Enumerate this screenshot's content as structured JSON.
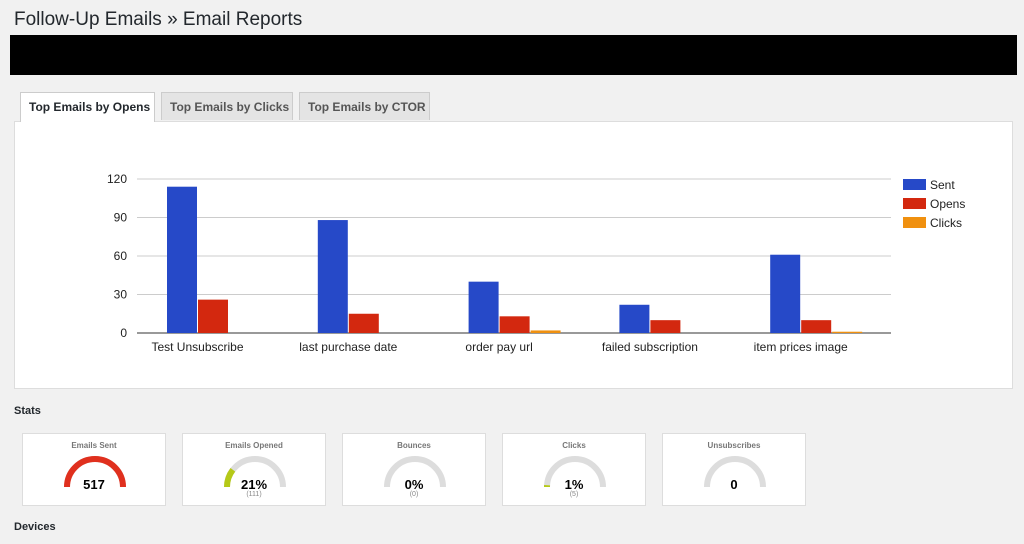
{
  "page": {
    "title": "Follow-Up Emails » Email Reports"
  },
  "tabs": [
    {
      "label": "Top Emails by Opens",
      "active": true
    },
    {
      "label": "Top Emails by Clicks",
      "active": false
    },
    {
      "label": "Top Emails by CTOR",
      "active": false
    }
  ],
  "chart_data": {
    "type": "bar",
    "categories": [
      "Test Unsubscribe",
      "last purchase date",
      "order pay url",
      "failed subscription",
      "item prices image"
    ],
    "series": [
      {
        "name": "Sent",
        "color": "#2649c8",
        "values": [
          114,
          88,
          40,
          22,
          61
        ]
      },
      {
        "name": "Opens",
        "color": "#d3280f",
        "values": [
          26,
          15,
          13,
          10,
          10
        ]
      },
      {
        "name": "Clicks",
        "color": "#f0900f",
        "values": [
          0,
          0,
          2,
          0,
          1
        ]
      }
    ],
    "yticks": [
      0,
      30,
      60,
      90,
      120
    ],
    "ylim": [
      0,
      120
    ],
    "grid": true,
    "legend": "right"
  },
  "stats": {
    "title": "Stats",
    "cards": [
      {
        "label": "Emails Sent",
        "value": "517",
        "sub": "",
        "fraction": 1.0,
        "color": "#e0301e"
      },
      {
        "label": "Emails Opened",
        "value": "21%",
        "sub": "(111)",
        "fraction": 0.21,
        "color": "#b5c918"
      },
      {
        "label": "Bounces",
        "value": "0%",
        "sub": "(0)",
        "fraction": 0,
        "color": "#dddddd"
      },
      {
        "label": "Clicks",
        "value": "1%",
        "sub": "(5)",
        "fraction": 0.01,
        "color": "#b5c918"
      },
      {
        "label": "Unsubscribes",
        "value": "0",
        "sub": "",
        "fraction": 0,
        "color": "#dddddd"
      }
    ]
  },
  "devices": {
    "title": "Devices"
  }
}
